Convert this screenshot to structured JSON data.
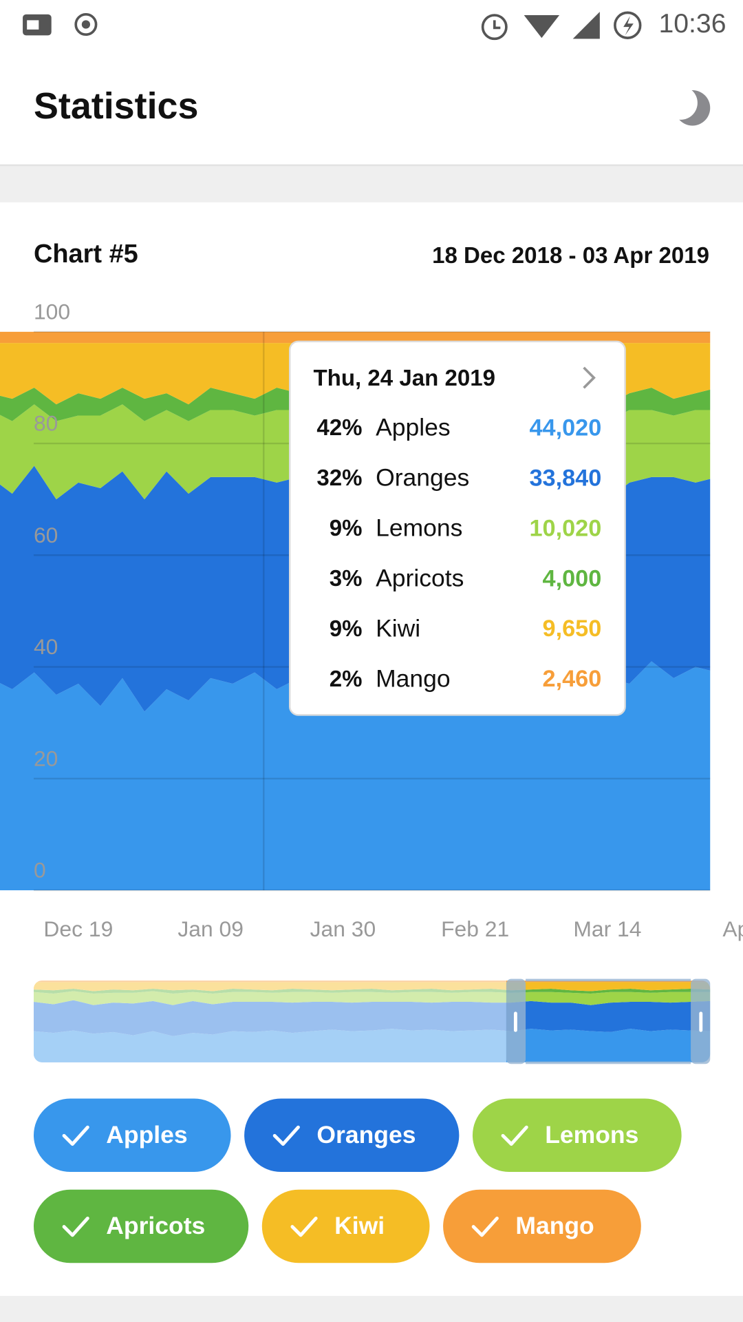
{
  "status_bar": {
    "time": "10:36"
  },
  "app_bar": {
    "title": "Statistics"
  },
  "chart_data": {
    "type": "area",
    "stacked": "percent",
    "title": "Chart #5",
    "subtitle": "18 Dec 2018 - 03 Apr 2019",
    "categories": [
      null,
      null,
      null,
      null,
      "Dec 19",
      null,
      null,
      null,
      null,
      null,
      "Jan 09",
      null,
      null,
      null,
      null,
      null,
      "Jan 30",
      null,
      null,
      null,
      null,
      null,
      "Feb 21",
      null,
      null,
      null,
      null,
      null,
      "Mar 14",
      null,
      null,
      null,
      null,
      null,
      "Apr"
    ],
    "ylim": [
      0,
      100
    ],
    "yticks": [
      0,
      20,
      40,
      60,
      80,
      100
    ],
    "grid": true,
    "series": [
      {
        "name": "Apples",
        "color": "#3897ec",
        "values": [
          38,
          36,
          39,
          35,
          37,
          33,
          38,
          32,
          36,
          34,
          38,
          37,
          39,
          36,
          38,
          40,
          38,
          39,
          41,
          39,
          40,
          38,
          39,
          40,
          38,
          41,
          39,
          40,
          38,
          37,
          41,
          38,
          40,
          39,
          38
        ]
      },
      {
        "name": "Oranges",
        "color": "#2373db",
        "values": [
          36,
          35,
          37,
          35,
          36,
          39,
          37,
          38,
          39,
          37,
          36,
          37,
          35,
          37,
          36,
          34,
          35,
          35,
          33,
          35,
          33,
          36,
          35,
          33,
          35,
          34,
          34,
          33,
          32,
          36,
          33,
          36,
          33,
          35,
          37
        ]
      },
      {
        "name": "Lemons",
        "color": "#9ed448",
        "values": [
          12,
          13,
          11,
          14,
          12,
          13,
          12,
          14,
          11,
          13,
          12,
          12,
          11,
          13,
          12,
          11,
          13,
          12,
          11,
          12,
          13,
          11,
          12,
          13,
          12,
          11,
          13,
          12,
          14,
          13,
          12,
          11,
          13,
          12,
          11
        ]
      },
      {
        "name": "Apricots",
        "color": "#5fb641",
        "values": [
          3,
          4,
          3,
          3,
          4,
          3,
          3,
          4,
          3,
          3,
          4,
          3,
          3,
          4,
          3,
          3,
          3,
          4,
          3,
          3,
          4,
          3,
          3,
          4,
          3,
          3,
          4,
          3,
          3,
          3,
          4,
          3,
          3,
          4,
          3
        ]
      },
      {
        "name": "Kiwi",
        "color": "#f5bd25",
        "values": [
          9,
          10,
          8,
          11,
          9,
          10,
          8,
          10,
          9,
          11,
          8,
          9,
          10,
          8,
          9,
          10,
          9,
          8,
          10,
          9,
          8,
          10,
          9,
          8,
          10,
          9,
          8,
          10,
          11,
          9,
          8,
          10,
          9,
          8,
          9
        ]
      },
      {
        "name": "Mango",
        "color": "#f79e39",
        "values": [
          2,
          2,
          2,
          2,
          2,
          2,
          2,
          2,
          2,
          2,
          2,
          2,
          2,
          2,
          2,
          2,
          2,
          2,
          2,
          2,
          2,
          2,
          2,
          2,
          2,
          2,
          2,
          2,
          2,
          2,
          2,
          2,
          2,
          2,
          2
        ]
      }
    ]
  },
  "tooltip": {
    "date": "Thu, 24 Jan 2019",
    "rows": [
      {
        "percent": "42%",
        "name": "Apples",
        "value": "44,020"
      },
      {
        "percent": "32%",
        "name": "Oranges",
        "value": "33,840"
      },
      {
        "percent": "9%",
        "name": "Lemons",
        "value": "10,020"
      },
      {
        "percent": "3%",
        "name": "Apricots",
        "value": "4,000"
      },
      {
        "percent": "9%",
        "name": "Kiwi",
        "value": "9,650"
      },
      {
        "percent": "2%",
        "name": "Mango",
        "value": "2,460"
      }
    ]
  }
}
